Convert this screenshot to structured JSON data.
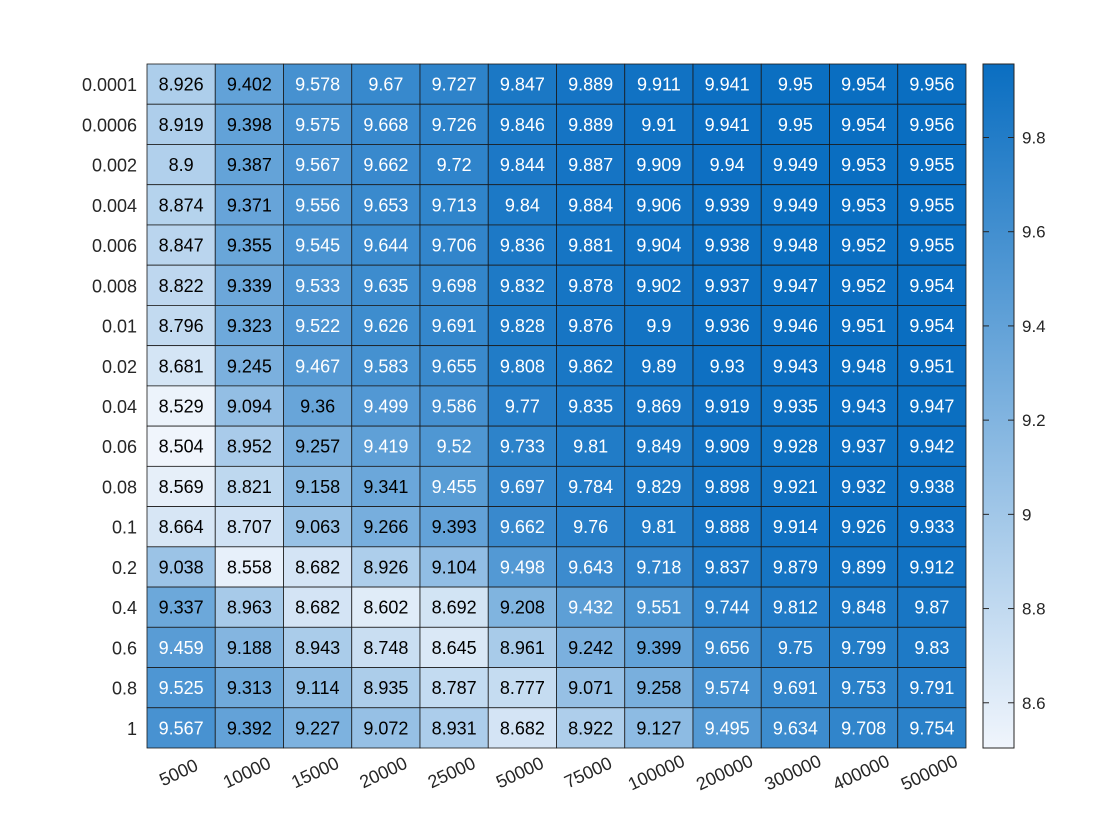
{
  "chart_data": {
    "type": "heatmap",
    "x_categories": [
      "5000",
      "10000",
      "15000",
      "20000",
      "25000",
      "50000",
      "75000",
      "100000",
      "200000",
      "300000",
      "400000",
      "500000"
    ],
    "y_categories": [
      "0.0001",
      "0.0006",
      "0.002",
      "0.004",
      "0.006",
      "0.008",
      "0.01",
      "0.02",
      "0.04",
      "0.06",
      "0.08",
      "0.1",
      "0.2",
      "0.4",
      "0.6",
      "0.8",
      "1"
    ],
    "values": [
      [
        8.926,
        9.402,
        9.578,
        9.67,
        9.727,
        9.847,
        9.889,
        9.911,
        9.941,
        9.95,
        9.954,
        9.956
      ],
      [
        8.919,
        9.398,
        9.575,
        9.668,
        9.726,
        9.846,
        9.889,
        9.91,
        9.941,
        9.95,
        9.954,
        9.956
      ],
      [
        8.9,
        9.387,
        9.567,
        9.662,
        9.72,
        9.844,
        9.887,
        9.909,
        9.94,
        9.949,
        9.953,
        9.955
      ],
      [
        8.874,
        9.371,
        9.556,
        9.653,
        9.713,
        9.84,
        9.884,
        9.906,
        9.939,
        9.949,
        9.953,
        9.955
      ],
      [
        8.847,
        9.355,
        9.545,
        9.644,
        9.706,
        9.836,
        9.881,
        9.904,
        9.938,
        9.948,
        9.952,
        9.955
      ],
      [
        8.822,
        9.339,
        9.533,
        9.635,
        9.698,
        9.832,
        9.878,
        9.902,
        9.937,
        9.947,
        9.952,
        9.954
      ],
      [
        8.796,
        9.323,
        9.522,
        9.626,
        9.691,
        9.828,
        9.876,
        9.9,
        9.936,
        9.946,
        9.951,
        9.954
      ],
      [
        8.681,
        9.245,
        9.467,
        9.583,
        9.655,
        9.808,
        9.862,
        9.89,
        9.93,
        9.943,
        9.948,
        9.951
      ],
      [
        8.529,
        9.094,
        9.36,
        9.499,
        9.586,
        9.77,
        9.835,
        9.869,
        9.919,
        9.935,
        9.943,
        9.947
      ],
      [
        8.504,
        8.952,
        9.257,
        9.419,
        9.52,
        9.733,
        9.81,
        9.849,
        9.909,
        9.928,
        9.937,
        9.942
      ],
      [
        8.569,
        8.821,
        9.158,
        9.341,
        9.455,
        9.697,
        9.784,
        9.829,
        9.898,
        9.921,
        9.932,
        9.938
      ],
      [
        8.664,
        8.707,
        9.063,
        9.266,
        9.393,
        9.662,
        9.76,
        9.81,
        9.888,
        9.914,
        9.926,
        9.933
      ],
      [
        9.038,
        8.558,
        8.682,
        8.926,
        9.104,
        9.498,
        9.643,
        9.718,
        9.837,
        9.879,
        9.899,
        9.912
      ],
      [
        9.337,
        8.963,
        8.682,
        8.602,
        8.692,
        9.208,
        9.432,
        9.551,
        9.744,
        9.812,
        9.848,
        9.87
      ],
      [
        9.459,
        9.188,
        8.943,
        8.748,
        8.645,
        8.961,
        9.242,
        9.399,
        9.656,
        9.75,
        9.799,
        9.83
      ],
      [
        9.525,
        9.313,
        9.114,
        8.935,
        8.787,
        8.777,
        9.071,
        9.258,
        9.574,
        9.691,
        9.753,
        9.791
      ],
      [
        9.567,
        9.392,
        9.227,
        9.072,
        8.931,
        8.682,
        8.922,
        9.127,
        9.495,
        9.634,
        9.708,
        9.754
      ]
    ],
    "colorbar": {
      "ticks": [
        "8.6",
        "8.8",
        "9",
        "9.2",
        "9.4",
        "9.6",
        "9.8"
      ],
      "range": [
        8.504,
        9.956
      ],
      "low_color": "#f0f5fc",
      "high_color": "#0a6ec1"
    },
    "title": "",
    "xlabel": "",
    "ylabel": "",
    "grid": true
  }
}
